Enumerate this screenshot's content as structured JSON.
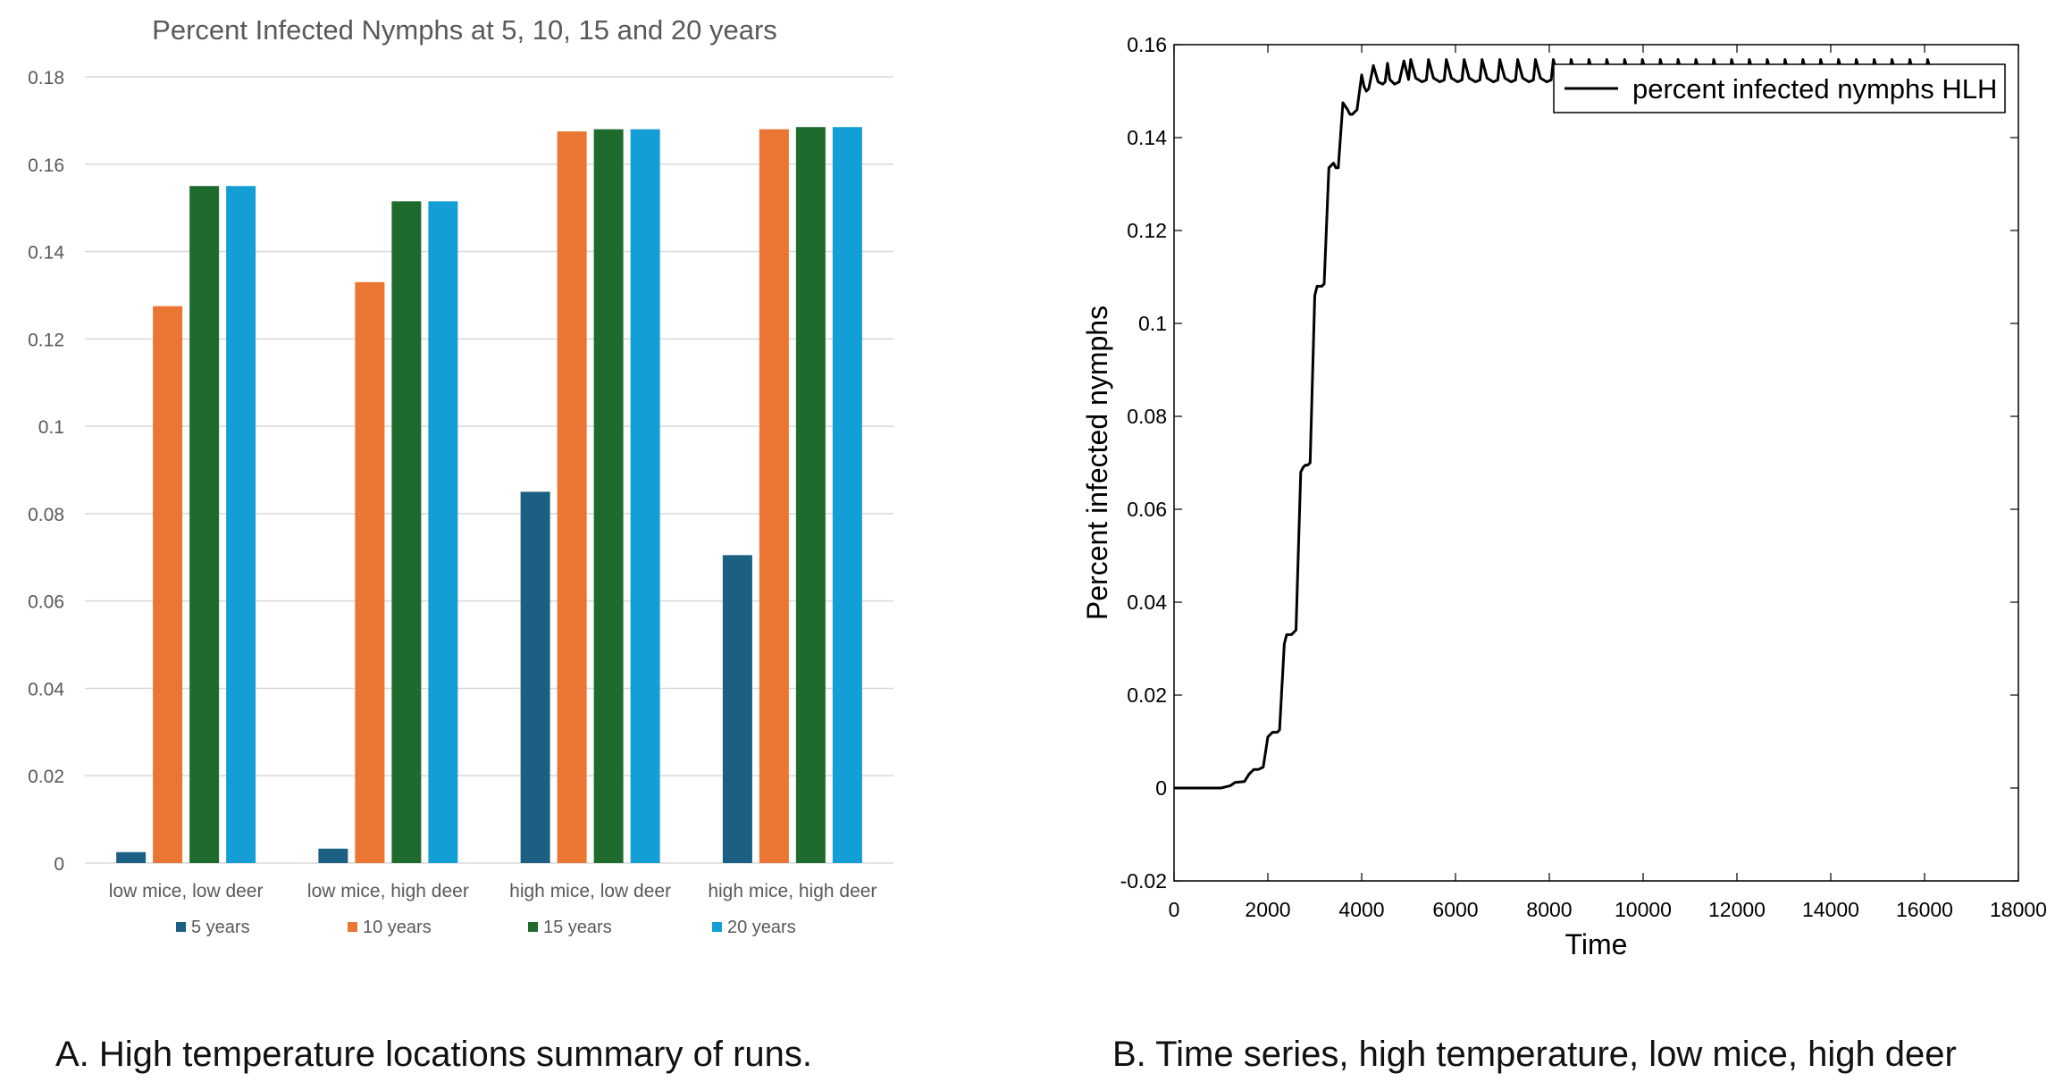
{
  "captions": {
    "a": "A.  High temperature locations summary of runs.",
    "b": "B.  Time series, high temperature, low mice, high deer"
  },
  "chart_data": [
    {
      "type": "bar",
      "title": "Percent Infected Nymphs at 5, 10, 15 and 20 years",
      "categories": [
        "low mice, low deer",
        "low mice, high deer",
        "high mice, low deer",
        "high mice, high deer"
      ],
      "series": [
        {
          "name": "5 years",
          "color": "#1b5f82",
          "values": [
            0.0025,
            0.0033,
            0.085,
            0.0705
          ]
        },
        {
          "name": "10 years",
          "color": "#eb7533",
          "values": [
            0.1275,
            0.133,
            0.1675,
            0.168
          ]
        },
        {
          "name": "15 years",
          "color": "#1f6b2e",
          "values": [
            0.155,
            0.1515,
            0.168,
            0.1685
          ]
        },
        {
          "name": "20 years",
          "color": "#139fd6",
          "values": [
            0.155,
            0.1515,
            0.168,
            0.1685
          ]
        }
      ],
      "ylim": [
        0,
        0.18
      ],
      "yticks": [
        0,
        0.02,
        0.04,
        0.06,
        0.08,
        0.1,
        0.12,
        0.14,
        0.16,
        0.18
      ],
      "ytick_labels": [
        "0",
        "0.02",
        "0.04",
        "0.06",
        "0.08",
        "0.1",
        "0.12",
        "0.14",
        "0.16",
        "0.18"
      ],
      "grid": true,
      "legend": "bottom",
      "title_color": "#595959",
      "grid_color": "#d9d9d9",
      "text_color": "#595959"
    },
    {
      "type": "line",
      "title": "",
      "xlabel": "Time",
      "ylabel": "Percent infected nymphs",
      "xlim": [
        0,
        18000
      ],
      "ylim": [
        -0.02,
        0.16
      ],
      "xticks": [
        0,
        2000,
        4000,
        6000,
        8000,
        10000,
        12000,
        14000,
        16000,
        18000
      ],
      "xtick_labels": [
        "0",
        "2000",
        "4000",
        "6000",
        "8000",
        "10000",
        "12000",
        "14000",
        "16000",
        "18000"
      ],
      "yticks": [
        -0.02,
        0,
        0.02,
        0.04,
        0.06,
        0.08,
        0.1,
        0.12,
        0.14,
        0.16
      ],
      "ytick_labels": [
        "-0.02",
        "0",
        "0.02",
        "0.04",
        "0.06",
        "0.08",
        "0.1",
        "0.12",
        "0.14",
        "0.16"
      ],
      "legend": "top-right",
      "series": [
        {
          "name": "percent infected nymphs HLH",
          "color": "#000000",
          "x": [
            0,
            1000,
            1200,
            1300,
            1500,
            1600,
            1700,
            1800,
            1900,
            2000,
            2100,
            2200,
            2250,
            2350,
            2400,
            2500,
            2600,
            2700,
            2750,
            2800,
            2850,
            2900,
            3000,
            3050,
            3100,
            3150,
            3200,
            3300,
            3400,
            3450,
            3500,
            3600,
            3700,
            3750,
            3800,
            3900,
            4000,
            4050,
            4100,
            4150,
            4250,
            4350,
            4450,
            4500,
            4550,
            4600,
            4700,
            4800,
            4900,
            5000
          ],
          "y": [
            0,
            0,
            0.0005,
            0.0012,
            0.0014,
            0.003,
            0.004,
            0.004,
            0.0045,
            0.011,
            0.012,
            0.012,
            0.0125,
            0.031,
            0.033,
            0.033,
            0.034,
            0.068,
            0.069,
            0.0695,
            0.0695,
            0.07,
            0.106,
            0.108,
            0.108,
            0.108,
            0.1085,
            0.1335,
            0.1345,
            0.1335,
            0.1335,
            0.1475,
            0.146,
            0.145,
            0.145,
            0.146,
            0.1535,
            0.151,
            0.15,
            0.1505,
            0.1555,
            0.152,
            0.1515,
            0.152,
            0.156,
            0.1525,
            0.1515,
            0.152,
            0.1565,
            0.1525
          ],
          "oscillation": {
            "start": 5000,
            "end": 16300,
            "period": 380,
            "low": 0.152,
            "high": 0.1568
          }
        }
      ]
    }
  ]
}
